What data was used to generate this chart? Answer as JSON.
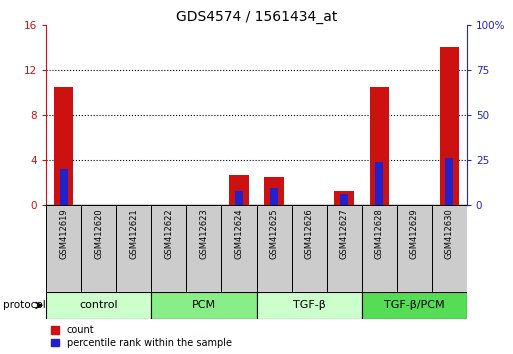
{
  "title": "GDS4574 / 1561434_at",
  "samples": [
    "GSM412619",
    "GSM412620",
    "GSM412621",
    "GSM412622",
    "GSM412623",
    "GSM412624",
    "GSM412625",
    "GSM412626",
    "GSM412627",
    "GSM412628",
    "GSM412629",
    "GSM412630"
  ],
  "count_values": [
    10.5,
    0.0,
    0.0,
    0.0,
    0.0,
    2.7,
    2.5,
    0.0,
    1.3,
    10.5,
    0.0,
    14.0
  ],
  "percentile_values": [
    20.0,
    0.0,
    0.0,
    0.0,
    0.0,
    8.0,
    9.5,
    0.0,
    6.5,
    24.0,
    0.0,
    26.0
  ],
  "ylim_left": [
    0,
    16
  ],
  "ylim_right": [
    0,
    100
  ],
  "yticks_left": [
    0,
    4,
    8,
    12,
    16
  ],
  "ytick_labels_left": [
    "0",
    "4",
    "8",
    "12",
    "16"
  ],
  "yticks_right": [
    0,
    25,
    50,
    75,
    100
  ],
  "ytick_labels_right": [
    "0",
    "25",
    "50",
    "75",
    "100%"
  ],
  "groups": [
    {
      "label": "control",
      "start": 0,
      "end": 2,
      "color": "#ccffcc"
    },
    {
      "label": "PCM",
      "start": 3,
      "end": 5,
      "color": "#88ee88"
    },
    {
      "label": "TGF-β",
      "start": 6,
      "end": 8,
      "color": "#ccffcc"
    },
    {
      "label": "TGF-β/PCM",
      "start": 9,
      "end": 11,
      "color": "#55dd55"
    }
  ],
  "count_color": "#cc1111",
  "percentile_color": "#2222cc",
  "sample_bg_color": "#cccccc",
  "protocol_label": "protocol",
  "background_color": "#ffffff",
  "title_fontsize": 10,
  "tick_fontsize": 7.5,
  "sample_fontsize": 6,
  "group_fontsize": 8
}
